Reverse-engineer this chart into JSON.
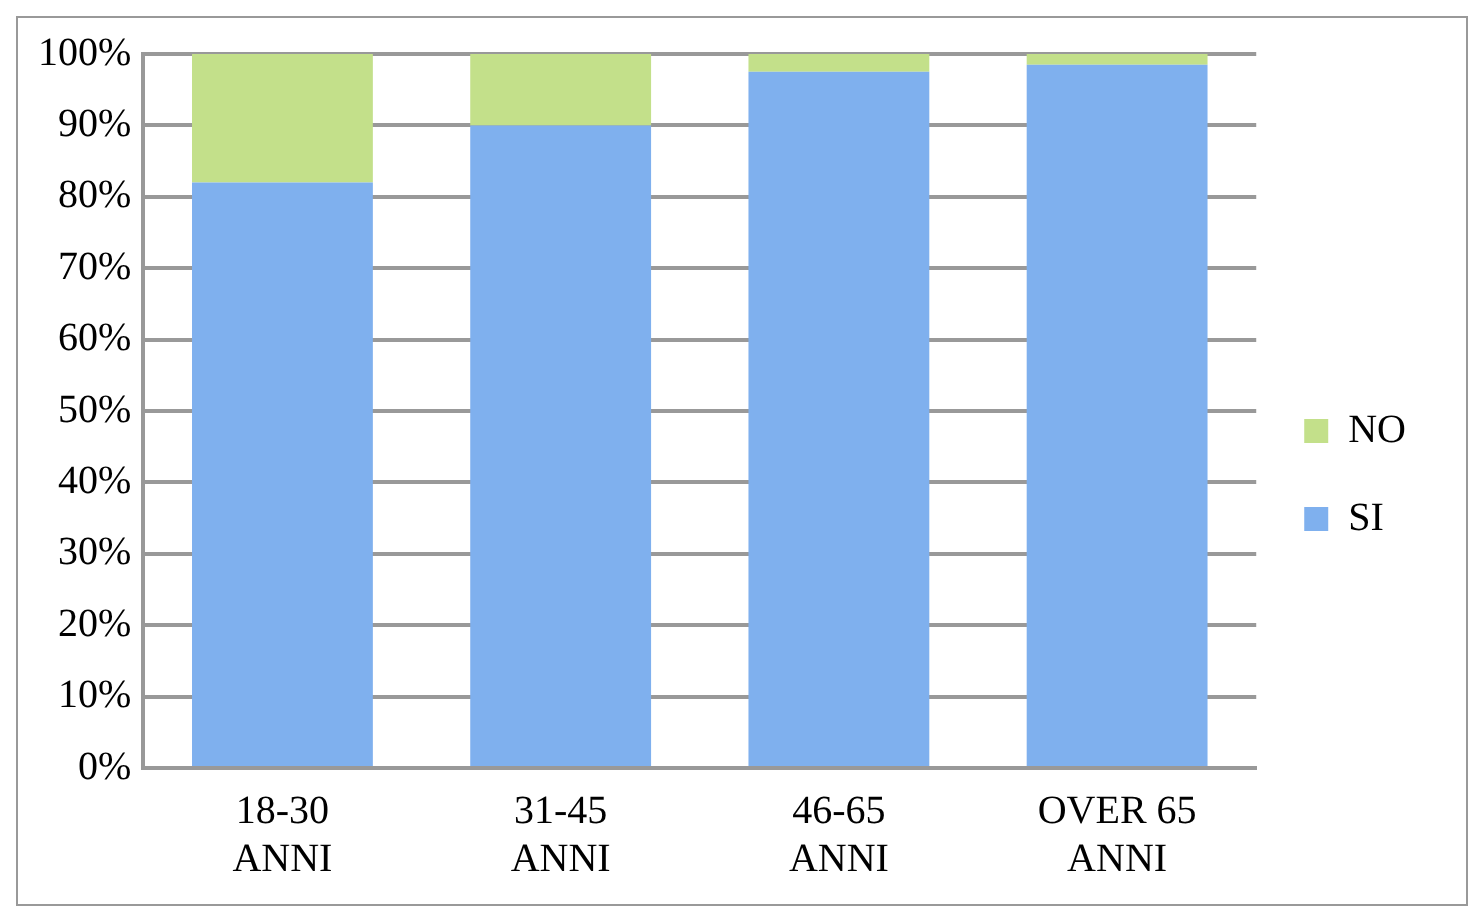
{
  "chart_data": {
    "type": "bar",
    "stacked": true,
    "categories": [
      "18-30 ANNI",
      "31-45 ANNI",
      "46-65 ANNI",
      "OVER 65 ANNI"
    ],
    "series": [
      {
        "name": "SI",
        "color": "#7fb0ee",
        "values": [
          82,
          90,
          97.5,
          98.5
        ]
      },
      {
        "name": "NO",
        "color": "#c3e08a",
        "values": [
          18,
          10,
          2.5,
          1.5
        ]
      }
    ],
    "ylim": [
      0,
      100
    ],
    "yticks": [
      {
        "value": 0,
        "label": "0%"
      },
      {
        "value": 10,
        "label": "10%"
      },
      {
        "value": 20,
        "label": "20%"
      },
      {
        "value": 30,
        "label": "30%"
      },
      {
        "value": 40,
        "label": "40%"
      },
      {
        "value": 50,
        "label": "50%"
      },
      {
        "value": 60,
        "label": "60%"
      },
      {
        "value": 70,
        "label": "70%"
      },
      {
        "value": 80,
        "label": "80%"
      },
      {
        "value": 90,
        "label": "90%"
      },
      {
        "value": 100,
        "label": "100%"
      }
    ],
    "grid": "y",
    "legend": "right"
  }
}
